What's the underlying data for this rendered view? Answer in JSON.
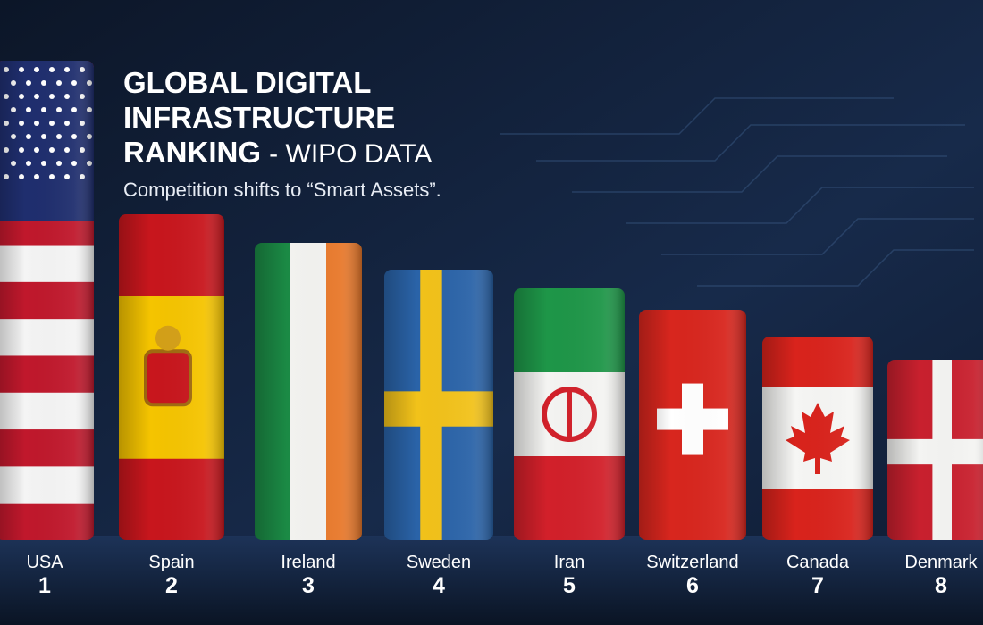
{
  "header": {
    "title_lines": [
      "GLOBAL DIGITAL",
      "INFRASTRUCTURE",
      "RANKING"
    ],
    "title_suffix": "- WIPO DATA",
    "subtitle": "Competition shifts to “Smart Assets”."
  },
  "ranking": [
    {
      "country": "USA",
      "rank": 1
    },
    {
      "country": "Spain",
      "rank": 2
    },
    {
      "country": "Ireland",
      "rank": 3
    },
    {
      "country": "Sweden",
      "rank": 4
    },
    {
      "country": "Iran",
      "rank": 5
    },
    {
      "country": "Switzerland",
      "rank": 6
    },
    {
      "country": "Canada",
      "rank": 7
    },
    {
      "country": "Denmark",
      "rank": 8
    }
  ]
}
